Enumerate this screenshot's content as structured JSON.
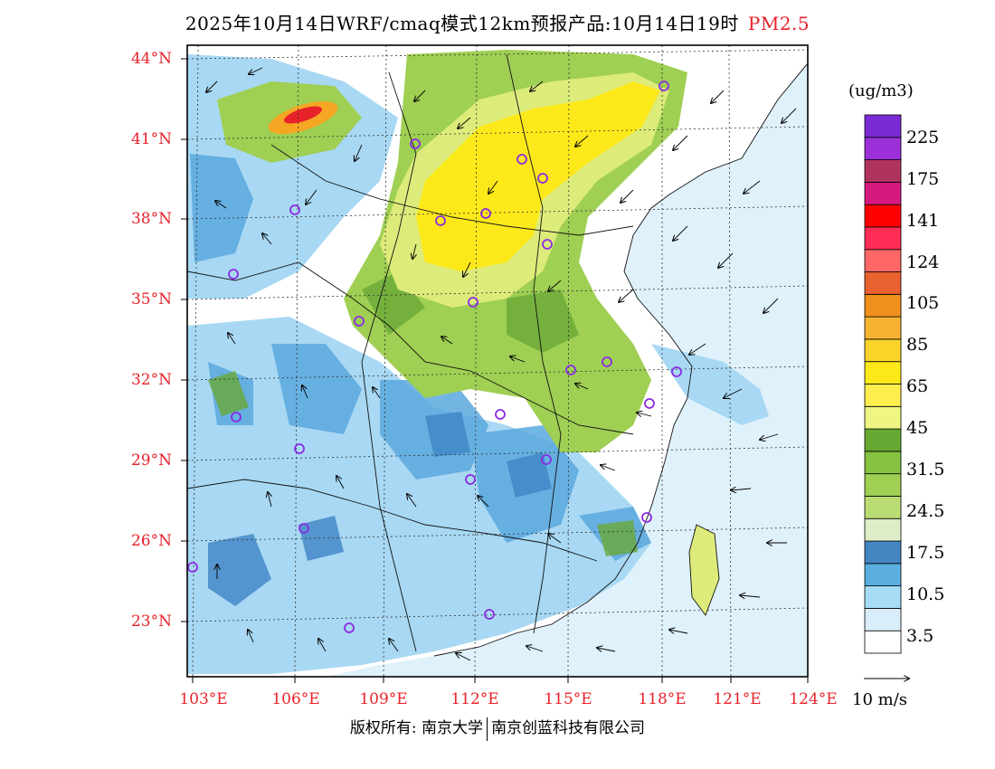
{
  "title": {
    "main": "2025年10月14日WRF/cmaq模式12km预报产品:10月14日19时",
    "pollutant": "PM2.5"
  },
  "axes": {
    "lat_labels": [
      "44°N",
      "41°N",
      "38°N",
      "35°N",
      "32°N",
      "29°N",
      "26°N",
      "23°N"
    ],
    "lon_labels": [
      "103°E",
      "106°E",
      "109°E",
      "112°E",
      "115°E",
      "118°E",
      "121°E",
      "124°E"
    ]
  },
  "colorbar": {
    "unit": "(ug/m3)",
    "colors": [
      "#ffffff",
      "#d9eefa",
      "#a6dcf5",
      "#5aaee0",
      "#4586c2",
      "#dcedc8",
      "#b9dc73",
      "#9fcf53",
      "#85c241",
      "#66a832",
      "#eef582",
      "#ffee4d",
      "#fde91a",
      "#fbd42a",
      "#f5b331",
      "#f08f1d",
      "#e8612e",
      "#ff6666",
      "#ff2d55",
      "#ff0000",
      "#d6197f",
      "#b0325e",
      "#9b30d9",
      "#7b2bd6"
    ],
    "labels": [
      "3.5",
      "10.5",
      "17.5",
      "24.5",
      "31.5",
      "45",
      "65",
      "85",
      "105",
      "124",
      "141",
      "175",
      "225"
    ]
  },
  "vector_reference": "10 m/s",
  "copyright": {
    "left": "版权所有: 南京大学",
    "right": "南京创蓝科技有限公司"
  },
  "map_colors": {
    "background": "#dff1fa",
    "light_blue": "#a8d8f3",
    "mid_blue": "#5aa8dd",
    "deep_blue": "#3f85c6",
    "green": "#9fcf53",
    "dark_green": "#6aa838",
    "yellow_green": "#dceb7a",
    "yellow": "#fde91a",
    "orange": "#f5a623",
    "red": "#e8222a",
    "station": "#8a2be2"
  }
}
